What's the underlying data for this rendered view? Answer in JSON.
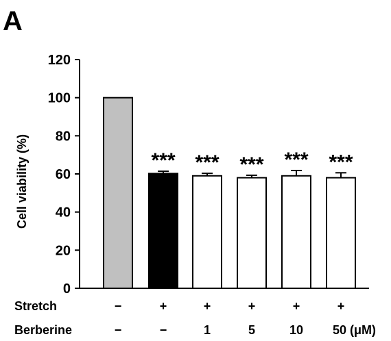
{
  "panel_label": "A",
  "chart_data": {
    "type": "bar",
    "ylabel": "Cell viability (%)",
    "ylim": [
      0,
      120
    ],
    "yticks": [
      0,
      20,
      40,
      60,
      80,
      100,
      120
    ],
    "grid": false,
    "values": [
      100,
      60.2,
      59,
      58,
      59,
      58
    ],
    "errors": [
      0,
      1.2,
      1.3,
      1.3,
      2.8,
      2.6
    ],
    "colors": [
      "#c0c0c0",
      "#000000",
      "#ffffff",
      "#ffffff",
      "#ffffff",
      "#ffffff"
    ],
    "significance": [
      "",
      "***",
      "***",
      "***",
      "***",
      "***"
    ],
    "conditions": [
      {
        "label": "Stretch",
        "values": [
          "−",
          "+",
          "+",
          "+",
          "+",
          "+"
        ]
      },
      {
        "label": "Berberine",
        "values": [
          "−",
          "−",
          "1",
          "5",
          "10",
          "50 (μM)"
        ]
      }
    ]
  }
}
